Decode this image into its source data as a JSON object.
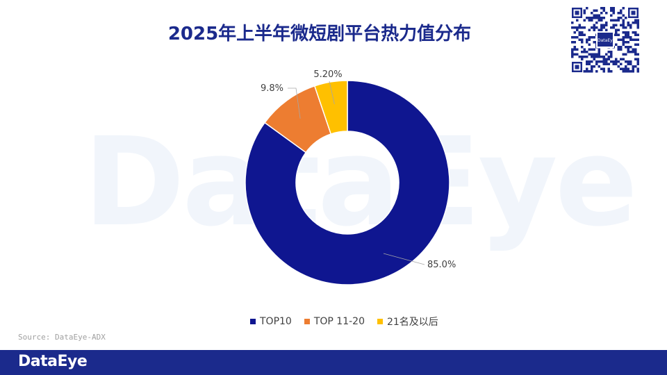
{
  "title": "2025年上半年微短剧平台热力值分布",
  "watermark": "DataEye",
  "qr_badge": "DataEye",
  "source": "Source: DataEye-ADX",
  "footer_logo": "DataEye",
  "chart_data": {
    "type": "pie",
    "donut": true,
    "title": "2025年上半年微短剧平台热力值分布",
    "legend_position": "bottom",
    "slices": [
      {
        "name": "TOP10",
        "value": 85.0,
        "label": "85.0%",
        "color": "#0f1690"
      },
      {
        "name": "TOP 11-20",
        "value": 9.8,
        "label": "9.8%",
        "color": "#ed7d31"
      },
      {
        "name": "21名及以后",
        "value": 5.2,
        "label": "5.20%",
        "color": "#ffc000"
      }
    ]
  }
}
